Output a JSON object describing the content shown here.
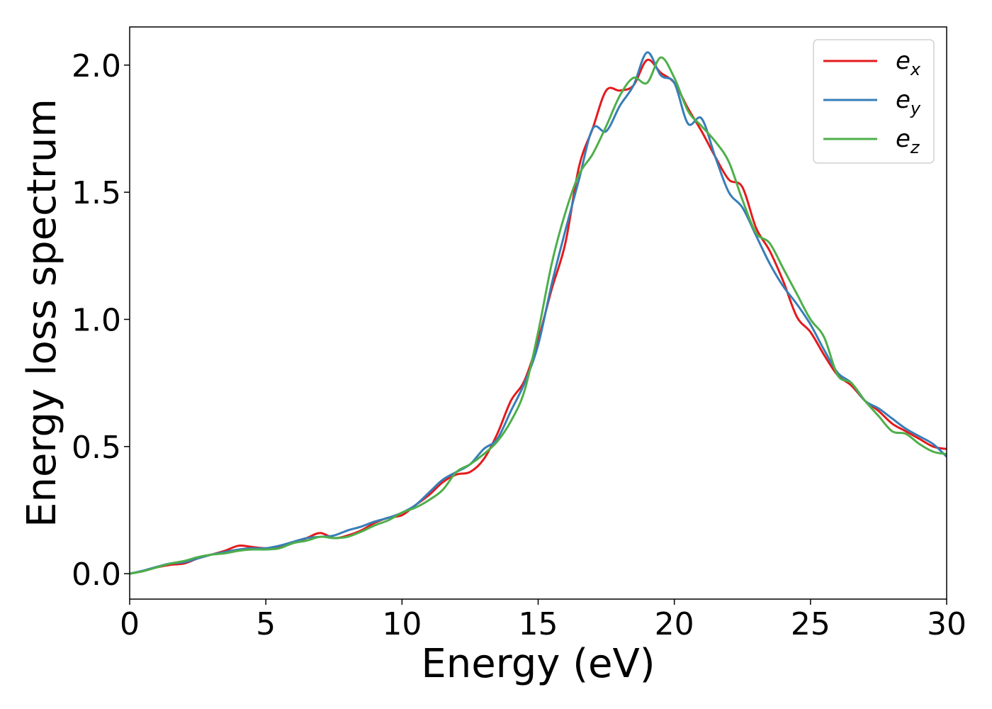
{
  "chart_data": {
    "type": "line",
    "title": "",
    "xlabel": "Energy (eV)",
    "ylabel": "Energy loss spectrum",
    "xlim": [
      0,
      30
    ],
    "ylim": [
      -0.1,
      2.15
    ],
    "xticks": [
      0,
      5,
      10,
      15,
      20,
      25,
      30
    ],
    "yticks": [
      0.0,
      0.5,
      1.0,
      1.5,
      2.0
    ],
    "xtick_labels": [
      "0",
      "5",
      "10",
      "15",
      "20",
      "25",
      "30"
    ],
    "ytick_labels": [
      "0.0",
      "0.5",
      "1.0",
      "1.5",
      "2.0"
    ],
    "grid": false,
    "legend_position": "top-right",
    "series": [
      {
        "name": "e_x",
        "label_main": "e",
        "label_sub": "x",
        "color": "#e41a1c",
        "x": [
          0,
          0.5,
          1,
          1.5,
          2,
          2.5,
          3,
          3.5,
          4,
          4.5,
          5,
          5.5,
          6,
          6.5,
          7,
          7.5,
          8,
          8.5,
          9,
          9.5,
          10,
          10.5,
          11,
          11.5,
          12,
          12.5,
          13,
          13.5,
          14,
          14.5,
          15,
          15.5,
          16,
          16.5,
          17,
          17.5,
          18,
          18.5,
          19,
          19.5,
          20,
          20.5,
          21,
          21.5,
          22,
          22.5,
          23,
          23.5,
          24,
          24.5,
          25,
          25.5,
          26,
          26.5,
          27,
          27.5,
          28,
          28.5,
          29,
          29.5,
          30
        ],
        "y": [
          0.0,
          0.01,
          0.025,
          0.035,
          0.04,
          0.06,
          0.075,
          0.09,
          0.11,
          0.105,
          0.1,
          0.105,
          0.12,
          0.14,
          0.16,
          0.14,
          0.15,
          0.17,
          0.2,
          0.22,
          0.23,
          0.27,
          0.31,
          0.36,
          0.39,
          0.4,
          0.45,
          0.55,
          0.68,
          0.76,
          0.92,
          1.12,
          1.3,
          1.6,
          1.75,
          1.9,
          1.9,
          1.92,
          2.02,
          1.97,
          1.93,
          1.83,
          1.74,
          1.64,
          1.55,
          1.52,
          1.36,
          1.27,
          1.15,
          1.01,
          0.95,
          0.86,
          0.78,
          0.74,
          0.68,
          0.64,
          0.59,
          0.56,
          0.53,
          0.5,
          0.49
        ]
      },
      {
        "name": "e_y",
        "label_main": "e",
        "label_sub": "y",
        "color": "#377eb8",
        "x": [
          0,
          0.5,
          1,
          1.5,
          2,
          2.5,
          3,
          3.5,
          4,
          4.5,
          5,
          5.5,
          6,
          6.5,
          7,
          7.5,
          8,
          8.5,
          9,
          9.5,
          10,
          10.5,
          11,
          11.5,
          12,
          12.5,
          13,
          13.5,
          14,
          14.5,
          15,
          15.5,
          16,
          16.5,
          17,
          17.5,
          18,
          18.5,
          19,
          19.5,
          20,
          20.5,
          21,
          21.5,
          22,
          22.5,
          23,
          23.5,
          24,
          24.5,
          25,
          25.5,
          26,
          26.5,
          27,
          27.5,
          28,
          28.5,
          29,
          29.5,
          30
        ],
        "y": [
          0.0,
          0.012,
          0.027,
          0.04,
          0.045,
          0.06,
          0.075,
          0.085,
          0.095,
          0.1,
          0.1,
          0.11,
          0.125,
          0.14,
          0.145,
          0.15,
          0.17,
          0.185,
          0.205,
          0.22,
          0.24,
          0.27,
          0.32,
          0.37,
          0.4,
          0.43,
          0.49,
          0.53,
          0.64,
          0.75,
          0.9,
          1.14,
          1.35,
          1.55,
          1.75,
          1.74,
          1.84,
          1.92,
          2.05,
          1.96,
          1.93,
          1.77,
          1.79,
          1.64,
          1.5,
          1.44,
          1.33,
          1.22,
          1.13,
          1.06,
          0.98,
          0.88,
          0.79,
          0.75,
          0.68,
          0.65,
          0.61,
          0.57,
          0.54,
          0.51,
          0.46
        ]
      },
      {
        "name": "e_z",
        "label_main": "e",
        "label_sub": "z",
        "color": "#4daf4a",
        "x": [
          0,
          0.5,
          1,
          1.5,
          2,
          2.5,
          3,
          3.5,
          4,
          4.5,
          5,
          5.5,
          6,
          6.5,
          7,
          7.5,
          8,
          8.5,
          9,
          9.5,
          10,
          10.5,
          11,
          11.5,
          12,
          12.5,
          13,
          13.5,
          14,
          14.5,
          15,
          15.5,
          16,
          16.5,
          17,
          17.5,
          18,
          18.5,
          19,
          19.5,
          20,
          20.5,
          21,
          21.5,
          22,
          22.5,
          23,
          23.5,
          24,
          24.5,
          25,
          25.5,
          26,
          26.5,
          27,
          27.5,
          28,
          28.5,
          29,
          29.5,
          30
        ],
        "y": [
          0.0,
          0.01,
          0.025,
          0.04,
          0.05,
          0.065,
          0.075,
          0.08,
          0.09,
          0.095,
          0.095,
          0.1,
          0.12,
          0.13,
          0.145,
          0.14,
          0.145,
          0.165,
          0.19,
          0.21,
          0.24,
          0.26,
          0.29,
          0.33,
          0.4,
          0.43,
          0.47,
          0.52,
          0.6,
          0.72,
          0.95,
          1.22,
          1.42,
          1.57,
          1.65,
          1.76,
          1.88,
          1.95,
          1.93,
          2.03,
          1.95,
          1.82,
          1.76,
          1.7,
          1.62,
          1.47,
          1.34,
          1.3,
          1.2,
          1.1,
          1.0,
          0.93,
          0.78,
          0.75,
          0.68,
          0.62,
          0.56,
          0.55,
          0.51,
          0.48,
          0.47
        ]
      }
    ]
  }
}
